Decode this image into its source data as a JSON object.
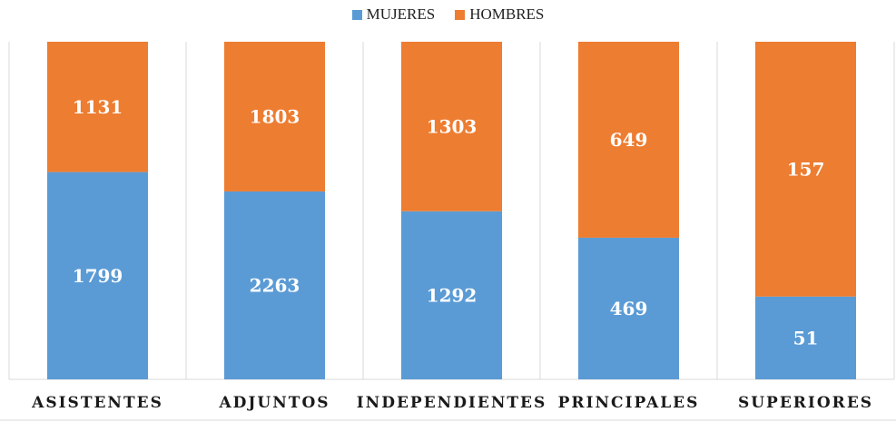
{
  "chart_data": {
    "type": "bar",
    "stacked": true,
    "normalized": true,
    "categories": [
      "ASISTENTES",
      "ADJUNTOS",
      "INDEPENDIENTES",
      "PRINCIPALES",
      "SUPERIORES"
    ],
    "series": [
      {
        "name": "MUJERES",
        "values": [
          1799,
          2263,
          1292,
          469,
          51
        ],
        "color": "#5b9bd5"
      },
      {
        "name": "HOMBRES",
        "values": [
          1131,
          1803,
          1303,
          649,
          157
        ],
        "color": "#ed7d31"
      }
    ],
    "ylim": [
      0,
      1
    ],
    "grid": "vertical separators",
    "legend_position": "top"
  }
}
